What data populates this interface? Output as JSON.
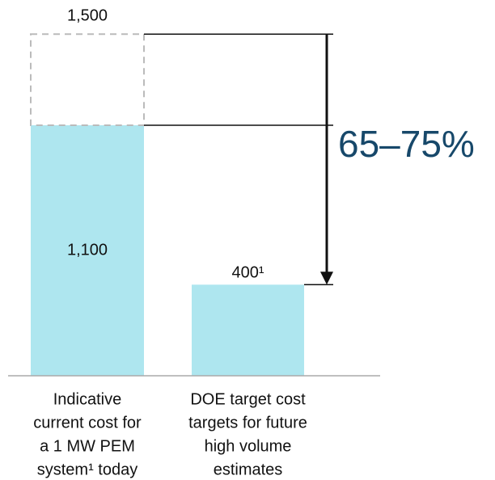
{
  "chart_data": {
    "type": "bar",
    "categories": [
      [
        "Indicative",
        "current cost for",
        "a 1 MW PEM",
        "system¹ today"
      ],
      [
        "DOE target cost",
        "targets for future",
        "high volume",
        "estimates"
      ]
    ],
    "values": [
      1100,
      400
    ],
    "value_labels": [
      "1,100",
      "400¹"
    ],
    "color": "#aee6ef",
    "ghost": {
      "value": 1500,
      "label": "1,500"
    },
    "annotation": "65–75%",
    "ylim": [
      0,
      1650
    ]
  }
}
